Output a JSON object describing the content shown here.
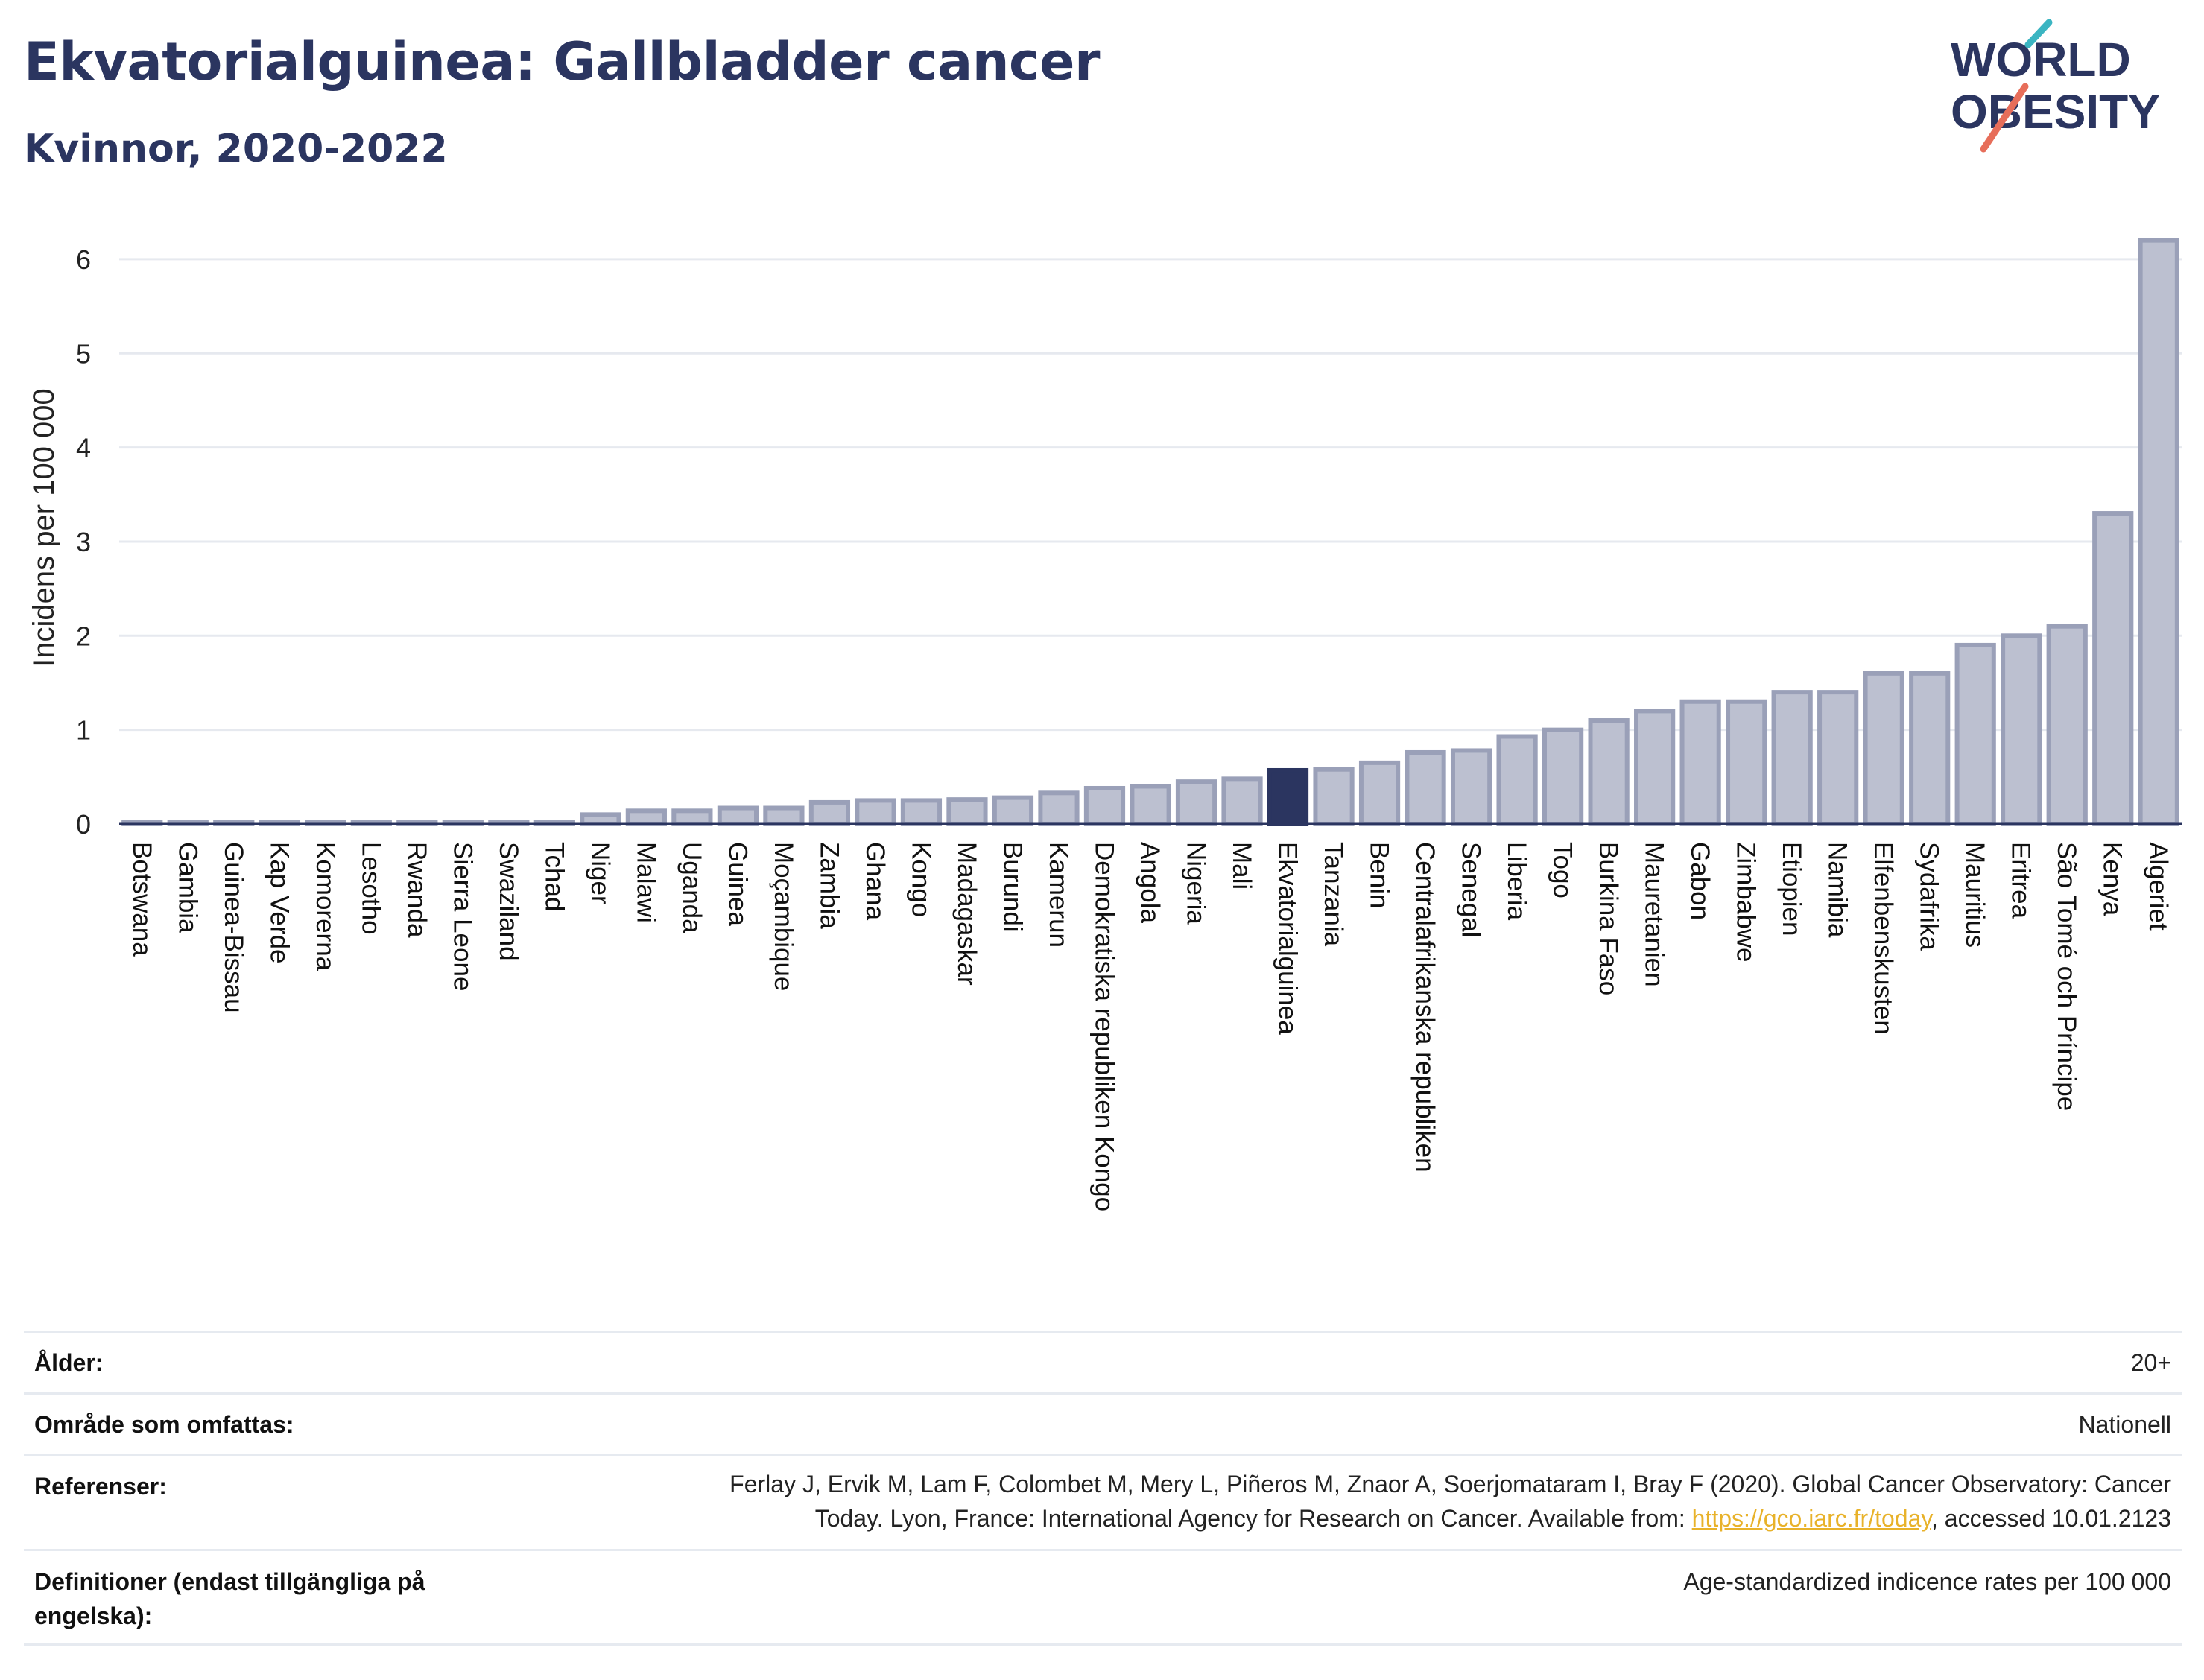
{
  "header": {
    "title": "Ekvatorialguinea: Gallbladder cancer",
    "subtitle": "Kvinnor, 2020-2022"
  },
  "logo": {
    "line1": "WORLD",
    "line2": "OBESITY",
    "stroke_colors": [
      "#3bb5c2",
      "#e76e5a"
    ],
    "text_color": "#2b3560"
  },
  "colors": {
    "bar": "#bcc0d0",
    "bar_stroke": "#9aa0b8",
    "highlight": "#2b3560",
    "grid": "#e6e9ef",
    "axis": "#2b3560"
  },
  "chart_data": {
    "type": "bar",
    "ylabel": "Incidens per 100 000",
    "ylim": [
      0,
      6.3
    ],
    "yticks": [
      0,
      1,
      2,
      3,
      4,
      5,
      6
    ],
    "grid": true,
    "highlight": "Ekvatorialguinea",
    "categories": [
      "Botswana",
      "Gambia",
      "Guinea-Bissau",
      "Kap Verde",
      "Komorerna",
      "Lesotho",
      "Rwanda",
      "Sierra Leone",
      "Swaziland",
      "Tchad",
      "Niger",
      "Malawi",
      "Uganda",
      "Guinea",
      "Moçambique",
      "Zambia",
      "Ghana",
      "Kongo",
      "Madagaskar",
      "Burundi",
      "Kamerun",
      "Demokratiska republiken Kongo",
      "Angola",
      "Nigeria",
      "Mali",
      "Ekvatorialguinea",
      "Tanzania",
      "Benin",
      "Centralafrikanska republiken",
      "Senegal",
      "Liberia",
      "Togo",
      "Burkina Faso",
      "Mauretanien",
      "Gabon",
      "Zimbabwe",
      "Etiopien",
      "Namibia",
      "Elfenbenskusten",
      "Sydafrika",
      "Mauritius",
      "Eritrea",
      "São Tomé och Príncipe",
      "Kenya",
      "Algeriet"
    ],
    "values": [
      0.02,
      0.02,
      0.02,
      0.02,
      0.02,
      0.02,
      0.02,
      0.02,
      0.02,
      0.02,
      0.1,
      0.14,
      0.14,
      0.17,
      0.17,
      0.23,
      0.25,
      0.25,
      0.26,
      0.28,
      0.33,
      0.38,
      0.4,
      0.45,
      0.48,
      0.57,
      0.58,
      0.65,
      0.76,
      0.78,
      0.93,
      1.0,
      1.1,
      1.2,
      1.3,
      1.3,
      1.4,
      1.4,
      1.6,
      1.6,
      1.9,
      2.0,
      2.1,
      3.3,
      6.2
    ]
  },
  "info": [
    {
      "label": "Ålder:",
      "value": "20+"
    },
    {
      "label": "Område som omfattas:",
      "value": "Nationell"
    },
    {
      "label": "Referenser:",
      "value_line1": "Ferlay J, Ervik M, Lam F, Colombet M, Mery L, Piñeros M, Znaor A, Soerjomataram I, Bray F (2020). Global Cancer Observatory: Cancer",
      "value_line2_pre": "Today. Lyon, France: International Agency for Research on Cancer. Available from: ",
      "link": "https://gco.iarc.fr/today",
      "value_line2_post": ", accessed 10.01.2123"
    },
    {
      "label_line1": "Definitioner (endast tillgängliga på",
      "label_line2": "engelska):",
      "value": "Age-standardized indicence rates per 100 000"
    }
  ]
}
